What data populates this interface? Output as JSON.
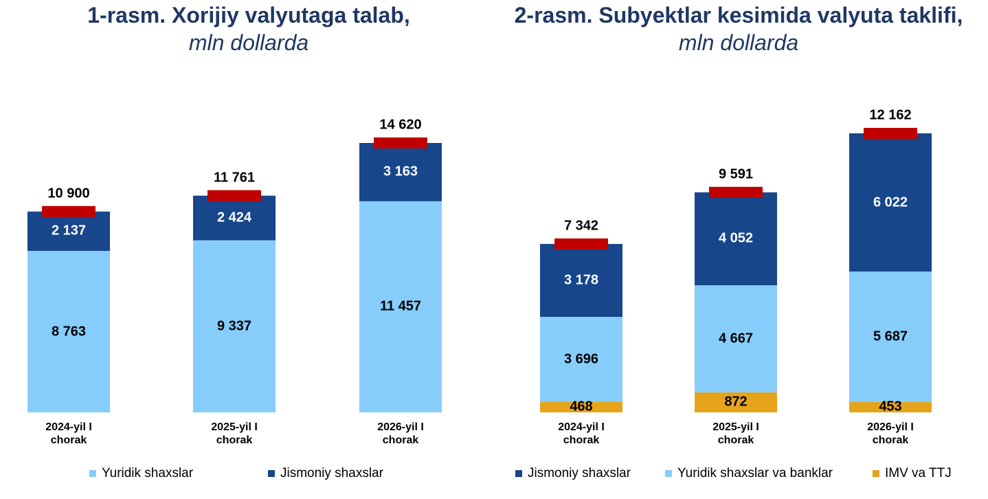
{
  "chart_data": [
    {
      "type": "bar",
      "stacked": true,
      "stack_from": "first",
      "title": "1-rasm. Xorijiy valyutaga talab,",
      "subtitle": "mln dollarda",
      "categories": [
        "2024-yil I chorak",
        "2025-yil I chorak",
        "2026-yil I chorak"
      ],
      "series": [
        {
          "name": "Yuridik shaxslar",
          "color": "#87cdfb",
          "values": [
            8763,
            9337,
            11457
          ],
          "value_labels": [
            "8 763",
            "9 337",
            "11 457"
          ]
        },
        {
          "name": "Jismoniy shaxslar",
          "color": "#17468b",
          "values": [
            2137,
            2424,
            3163
          ],
          "value_labels": [
            "2 137",
            "2 424",
            "3 163"
          ]
        }
      ],
      "totals": {
        "color": "#c00000",
        "values": [
          10900,
          11761,
          14620
        ],
        "value_labels": [
          "10 900",
          "11 761",
          "14 620"
        ]
      }
    },
    {
      "type": "bar",
      "stacked": true,
      "stack_from": "last",
      "title": "2-rasm. Subyektlar kesimida valyuta taklifi,",
      "subtitle": "mln dollarda",
      "categories": [
        "2024-yil I chorak",
        "2025-yil I chorak",
        "2026-yil I chorak"
      ],
      "series": [
        {
          "name": "Jismoniy shaxslar",
          "color": "#17468b",
          "values": [
            3178,
            4052,
            6022
          ],
          "value_labels": [
            "3 178",
            "4 052",
            "6 022"
          ]
        },
        {
          "name": "Yuridik shaxslar va banklar",
          "color": "#87cdfb",
          "values": [
            3696,
            4667,
            5687
          ],
          "value_labels": [
            "3 696",
            "4 667",
            "5 687"
          ]
        },
        {
          "name": "IMV va TTJ",
          "color": "#e6a41b",
          "values": [
            468,
            872,
            453
          ],
          "value_labels": [
            "468",
            "872",
            "453"
          ]
        }
      ],
      "totals": {
        "color": "#c00000",
        "values": [
          7342,
          9591,
          12162
        ],
        "value_labels": [
          "7 342",
          "9 591",
          "12 162"
        ]
      }
    }
  ]
}
